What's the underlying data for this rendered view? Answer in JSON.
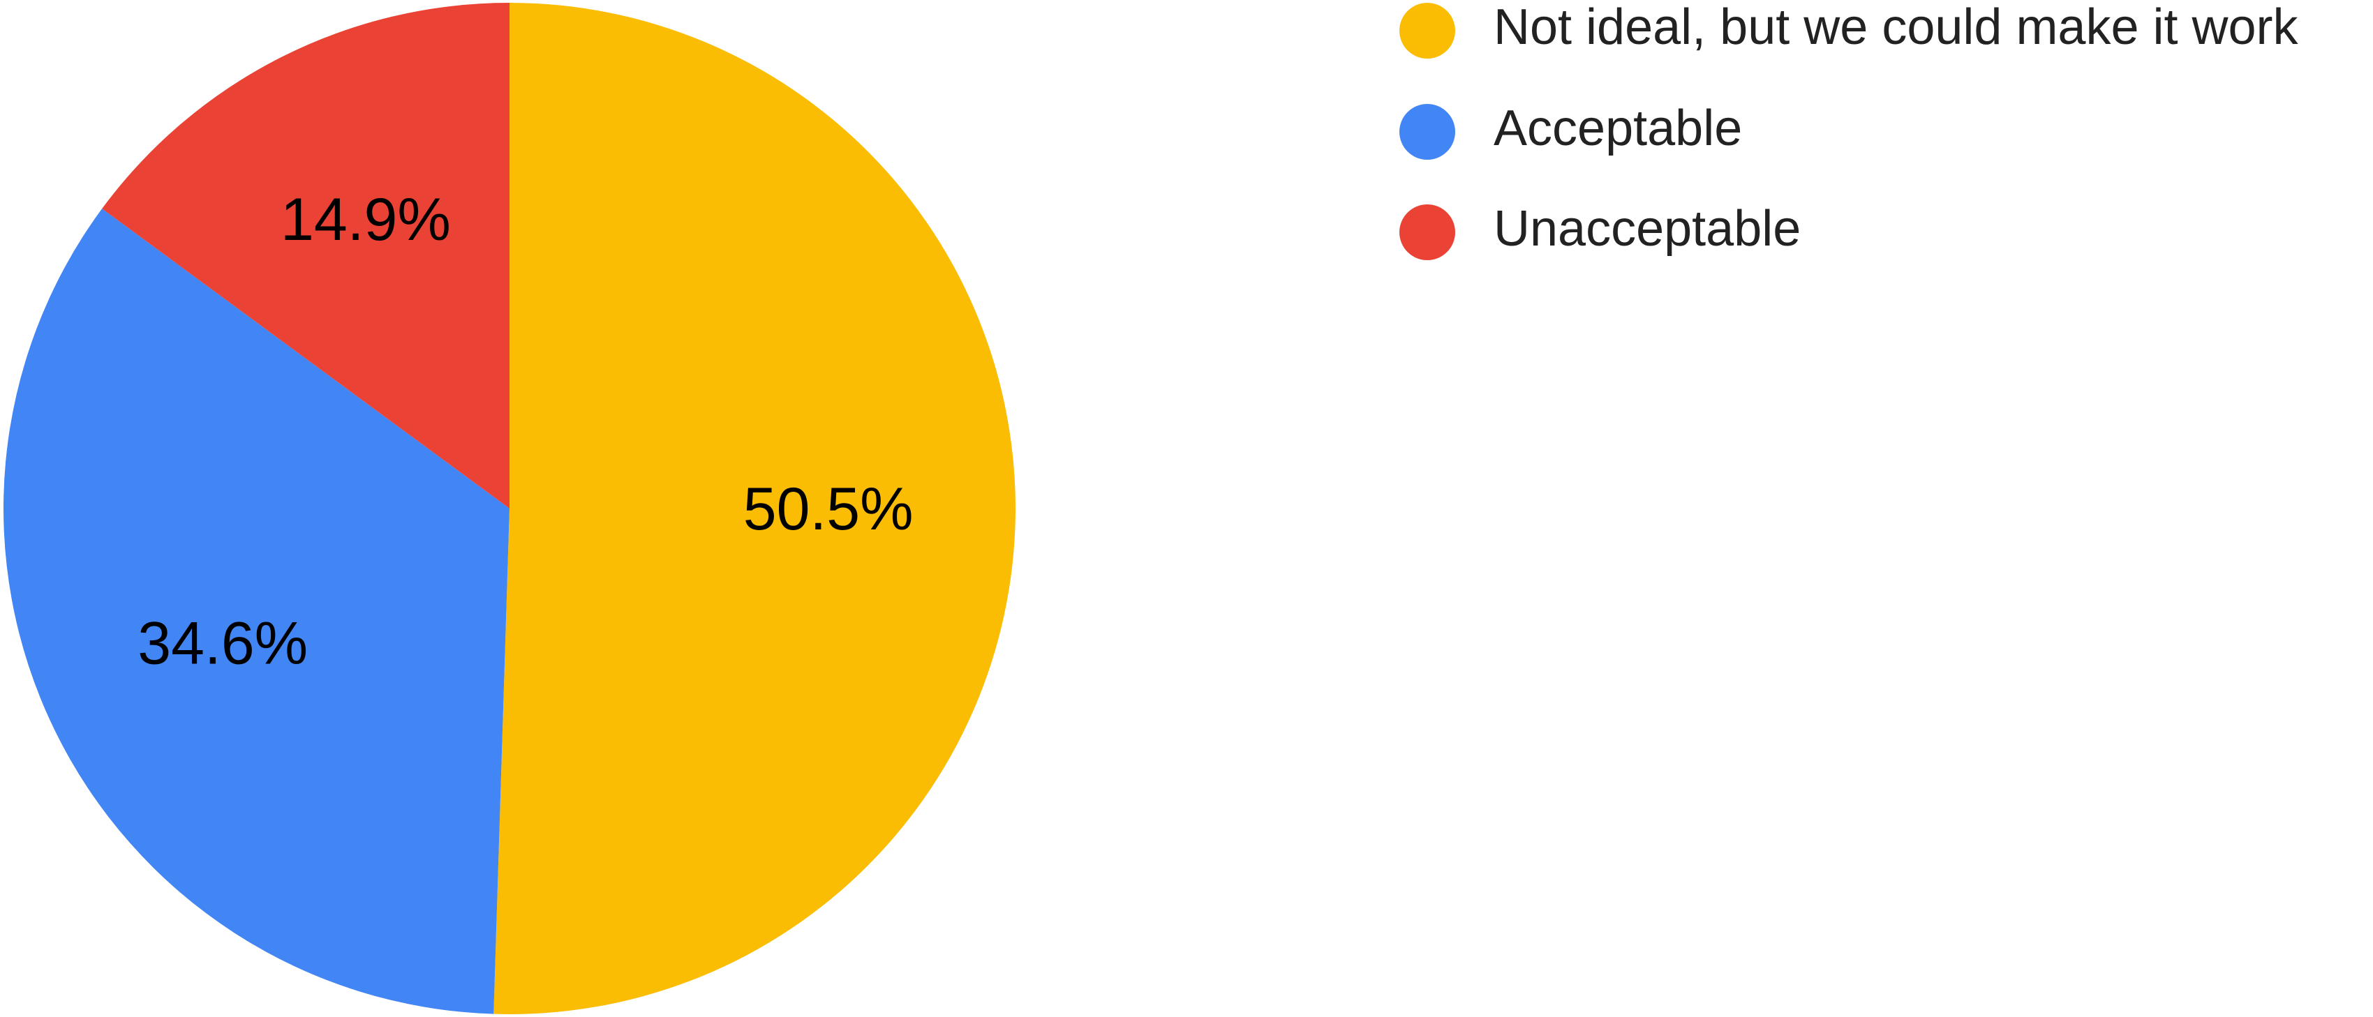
{
  "chart_data": {
    "type": "pie",
    "start_angle_deg": 0,
    "direction": "clockwise",
    "slices": [
      {
        "label": "Not ideal, but we could make it work",
        "value": 50.5,
        "display": "50.5%",
        "color": "#FBBC04"
      },
      {
        "label": "Acceptable",
        "value": 34.6,
        "display": "34.6%",
        "color": "#4285F4"
      },
      {
        "label": "Unacceptable",
        "value": 14.9,
        "display": "14.9%",
        "color": "#EA4335"
      }
    ],
    "legend": {
      "position": "right",
      "items": [
        {
          "label": "Not ideal, but we could make it work",
          "color": "#FBBC04"
        },
        {
          "label": "Acceptable",
          "color": "#4285F4"
        },
        {
          "label": "Unacceptable",
          "color": "#EA4335"
        }
      ]
    }
  }
}
